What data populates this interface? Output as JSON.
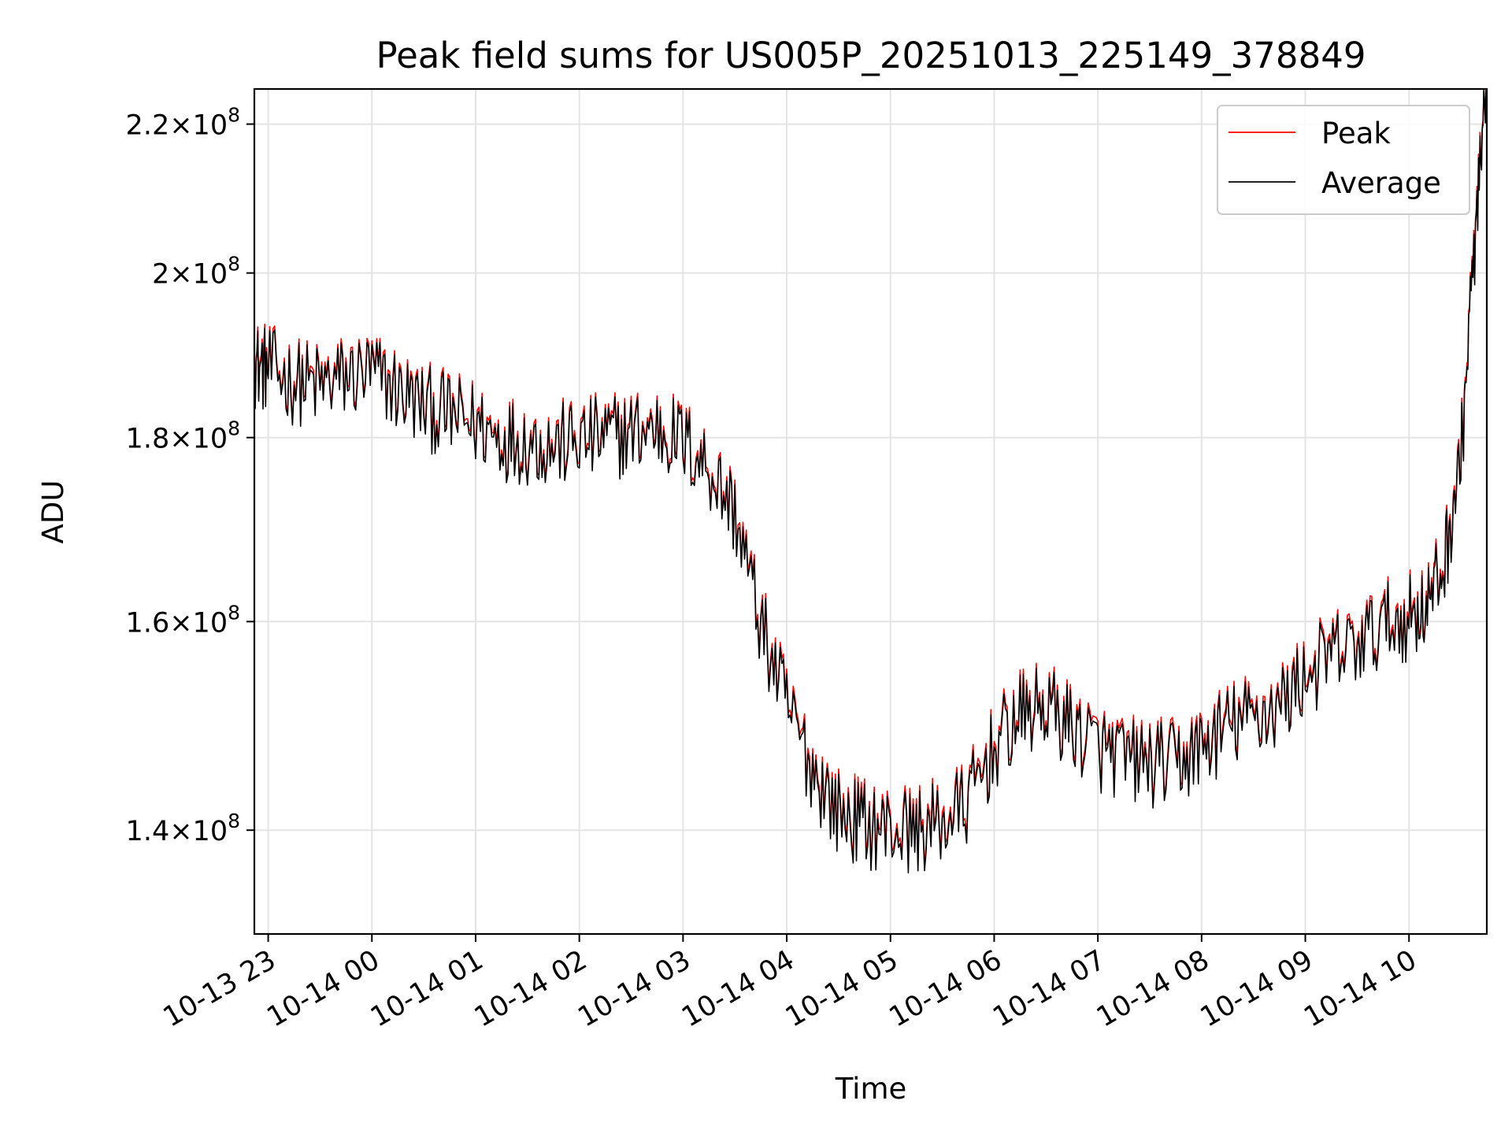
{
  "chart_data": {
    "type": "line",
    "title": "Peak field sums for US005P_20251013_225149_378849",
    "xlabel": "Time",
    "ylabel": "ADU",
    "y_scale": "log",
    "ylim": [
      131000000,
      225000000
    ],
    "xlim": [
      "2025-10-13 22:52",
      "2025-10-14 10:45"
    ],
    "grid": true,
    "legend_position": "upper right",
    "x_ticks": [
      {
        "t": "2025-10-13 23:00",
        "label": "10-13 23"
      },
      {
        "t": "2025-10-14 00:00",
        "label": "10-14 00"
      },
      {
        "t": "2025-10-14 01:00",
        "label": "10-14 01"
      },
      {
        "t": "2025-10-14 02:00",
        "label": "10-14 02"
      },
      {
        "t": "2025-10-14 03:00",
        "label": "10-14 03"
      },
      {
        "t": "2025-10-14 04:00",
        "label": "10-14 04"
      },
      {
        "t": "2025-10-14 05:00",
        "label": "10-14 05"
      },
      {
        "t": "2025-10-14 06:00",
        "label": "10-14 06"
      },
      {
        "t": "2025-10-14 07:00",
        "label": "10-14 07"
      },
      {
        "t": "2025-10-14 08:00",
        "label": "10-14 08"
      },
      {
        "t": "2025-10-14 09:00",
        "label": "10-14 09"
      },
      {
        "t": "2025-10-14 10:00",
        "label": "10-14 10"
      }
    ],
    "y_ticks": [
      {
        "value": 140000000,
        "mantissa": "1.4",
        "exponent": "8"
      },
      {
        "value": 160000000,
        "mantissa": "1.6",
        "exponent": "8"
      },
      {
        "value": 180000000,
        "mantissa": "1.8",
        "exponent": "8"
      },
      {
        "value": 200000000,
        "mantissa": "2",
        "exponent": "8"
      },
      {
        "value": 220000000,
        "mantissa": "2.2",
        "exponent": "8"
      }
    ],
    "series": [
      {
        "name": "Peak",
        "color": "#ff0000",
        "x": [
          "2025-10-13 22:52",
          "2025-10-13 23:00",
          "2025-10-13 23:15",
          "2025-10-13 23:30",
          "2025-10-13 23:45",
          "2025-10-14 00:00",
          "2025-10-14 00:15",
          "2025-10-14 00:30",
          "2025-10-14 00:45",
          "2025-10-14 01:00",
          "2025-10-14 01:15",
          "2025-10-14 01:30",
          "2025-10-14 01:45",
          "2025-10-14 02:00",
          "2025-10-14 02:15",
          "2025-10-14 02:30",
          "2025-10-14 02:45",
          "2025-10-14 03:00",
          "2025-10-14 03:15",
          "2025-10-14 03:30",
          "2025-10-14 03:45",
          "2025-10-14 04:00",
          "2025-10-14 04:15",
          "2025-10-14 04:30",
          "2025-10-14 04:45",
          "2025-10-14 05:00",
          "2025-10-14 05:15",
          "2025-10-14 05:30",
          "2025-10-14 05:45",
          "2025-10-14 06:00",
          "2025-10-14 06:15",
          "2025-10-14 06:30",
          "2025-10-14 06:45",
          "2025-10-14 07:00",
          "2025-10-14 07:15",
          "2025-10-14 07:30",
          "2025-10-14 07:45",
          "2025-10-14 08:00",
          "2025-10-14 08:15",
          "2025-10-14 08:30",
          "2025-10-14 08:45",
          "2025-10-14 09:00",
          "2025-10-14 09:15",
          "2025-10-14 09:30",
          "2025-10-14 09:45",
          "2025-10-14 10:00",
          "2025-10-14 10:10",
          "2025-10-14 10:20",
          "2025-10-14 10:30",
          "2025-10-14 10:38",
          "2025-10-14 10:45"
        ],
        "values": [
          189000000,
          188500000,
          187000000,
          186500000,
          187500000,
          188000000,
          186000000,
          184000000,
          183000000,
          182000000,
          180500000,
          180000000,
          179500000,
          180000000,
          180500000,
          181000000,
          181500000,
          180000000,
          177000000,
          172000000,
          160000000,
          152000000,
          146000000,
          142000000,
          141000000,
          140500000,
          140500000,
          141000000,
          143000000,
          148000000,
          151000000,
          152000000,
          150000000,
          148000000,
          147000000,
          146500000,
          146500000,
          148000000,
          150000000,
          151000000,
          152000000,
          155000000,
          157000000,
          158000000,
          160000000,
          161000000,
          162000000,
          166000000,
          178000000,
          204000000,
          225000000
        ]
      },
      {
        "name": "Average",
        "color": "#000000",
        "x": [
          "2025-10-13 22:52",
          "2025-10-13 23:00",
          "2025-10-13 23:15",
          "2025-10-13 23:30",
          "2025-10-13 23:45",
          "2025-10-14 00:00",
          "2025-10-14 00:15",
          "2025-10-14 00:30",
          "2025-10-14 00:45",
          "2025-10-14 01:00",
          "2025-10-14 01:15",
          "2025-10-14 01:30",
          "2025-10-14 01:45",
          "2025-10-14 02:00",
          "2025-10-14 02:15",
          "2025-10-14 02:30",
          "2025-10-14 02:45",
          "2025-10-14 03:00",
          "2025-10-14 03:15",
          "2025-10-14 03:30",
          "2025-10-14 03:45",
          "2025-10-14 04:00",
          "2025-10-14 04:15",
          "2025-10-14 04:30",
          "2025-10-14 04:45",
          "2025-10-14 05:00",
          "2025-10-14 05:15",
          "2025-10-14 05:30",
          "2025-10-14 05:45",
          "2025-10-14 06:00",
          "2025-10-14 06:15",
          "2025-10-14 06:30",
          "2025-10-14 06:45",
          "2025-10-14 07:00",
          "2025-10-14 07:15",
          "2025-10-14 07:30",
          "2025-10-14 07:45",
          "2025-10-14 08:00",
          "2025-10-14 08:15",
          "2025-10-14 08:30",
          "2025-10-14 08:45",
          "2025-10-14 09:00",
          "2025-10-14 09:15",
          "2025-10-14 09:30",
          "2025-10-14 09:45",
          "2025-10-14 10:00",
          "2025-10-14 10:10",
          "2025-10-14 10:20",
          "2025-10-14 10:30",
          "2025-10-14 10:38",
          "2025-10-14 10:45"
        ],
        "values": [
          188500000,
          188000000,
          186500000,
          186000000,
          187000000,
          187500000,
          185500000,
          183500000,
          182500000,
          181500000,
          180000000,
          179500000,
          179000000,
          179500000,
          180000000,
          180500000,
          181000000,
          179500000,
          176500000,
          171500000,
          159500000,
          151500000,
          145500000,
          141500000,
          140500000,
          140000000,
          140000000,
          140500000,
          142500000,
          147500000,
          150500000,
          151500000,
          149500000,
          147500000,
          146500000,
          146000000,
          146000000,
          147500000,
          149500000,
          150500000,
          151500000,
          154500000,
          156500000,
          157500000,
          159500000,
          160500000,
          161500000,
          165500000,
          177500000,
          203500000,
          224500000
        ]
      }
    ]
  }
}
